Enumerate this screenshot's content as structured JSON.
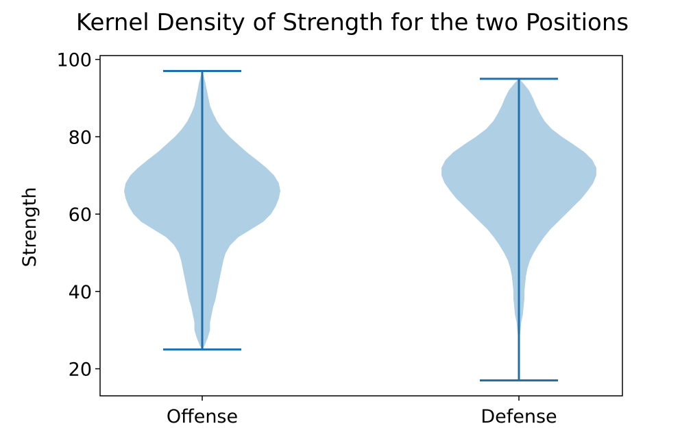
{
  "chart_data": {
    "type": "violin",
    "title": "Kernel Density of Strength for the two Positions",
    "xlabel": "",
    "ylabel": "Strength",
    "categories": [
      "Offense",
      "Defense"
    ],
    "ylim": [
      13,
      101
    ],
    "yticks": [
      20,
      40,
      60,
      80,
      100
    ],
    "grid": false,
    "colors": {
      "body": "#aecfe4",
      "lines": "#1f6fad",
      "axes": "#000000"
    },
    "violins": [
      {
        "category": "Offense",
        "min": 25,
        "max": 97,
        "density_profile": [
          [
            25,
            0.0
          ],
          [
            26,
            0.03
          ],
          [
            28,
            0.07
          ],
          [
            30,
            0.1
          ],
          [
            32,
            0.1
          ],
          [
            34,
            0.12
          ],
          [
            36,
            0.14
          ],
          [
            38,
            0.17
          ],
          [
            40,
            0.19
          ],
          [
            42,
            0.21
          ],
          [
            44,
            0.23
          ],
          [
            46,
            0.25
          ],
          [
            48,
            0.27
          ],
          [
            50,
            0.3
          ],
          [
            52,
            0.36
          ],
          [
            54,
            0.46
          ],
          [
            56,
            0.62
          ],
          [
            58,
            0.78
          ],
          [
            60,
            0.88
          ],
          [
            62,
            0.94
          ],
          [
            64,
            0.98
          ],
          [
            66,
            1.0
          ],
          [
            68,
            0.98
          ],
          [
            70,
            0.92
          ],
          [
            72,
            0.82
          ],
          [
            74,
            0.7
          ],
          [
            76,
            0.57
          ],
          [
            78,
            0.46
          ],
          [
            80,
            0.35
          ],
          [
            82,
            0.26
          ],
          [
            84,
            0.19
          ],
          [
            86,
            0.14
          ],
          [
            88,
            0.1
          ],
          [
            90,
            0.08
          ],
          [
            92,
            0.06
          ],
          [
            94,
            0.04
          ],
          [
            96,
            0.015
          ],
          [
            97,
            0.0
          ]
        ]
      },
      {
        "category": "Defense",
        "min": 17,
        "max": 95,
        "density_profile": [
          [
            17,
            0.0
          ],
          [
            20,
            0.0
          ],
          [
            24,
            0.0
          ],
          [
            28,
            0.01
          ],
          [
            30,
            0.02
          ],
          [
            32,
            0.03
          ],
          [
            34,
            0.05
          ],
          [
            36,
            0.06
          ],
          [
            38,
            0.07
          ],
          [
            40,
            0.07
          ],
          [
            42,
            0.08
          ],
          [
            44,
            0.09
          ],
          [
            46,
            0.11
          ],
          [
            48,
            0.14
          ],
          [
            50,
            0.19
          ],
          [
            52,
            0.25
          ],
          [
            54,
            0.32
          ],
          [
            56,
            0.4
          ],
          [
            58,
            0.5
          ],
          [
            60,
            0.6
          ],
          [
            62,
            0.7
          ],
          [
            64,
            0.8
          ],
          [
            66,
            0.88
          ],
          [
            68,
            0.95
          ],
          [
            70,
            0.99
          ],
          [
            72,
            0.99
          ],
          [
            74,
            0.94
          ],
          [
            76,
            0.84
          ],
          [
            78,
            0.7
          ],
          [
            80,
            0.55
          ],
          [
            82,
            0.42
          ],
          [
            84,
            0.33
          ],
          [
            86,
            0.27
          ],
          [
            88,
            0.22
          ],
          [
            90,
            0.18
          ],
          [
            92,
            0.13
          ],
          [
            94,
            0.05
          ],
          [
            95,
            0.0
          ]
        ]
      }
    ]
  }
}
